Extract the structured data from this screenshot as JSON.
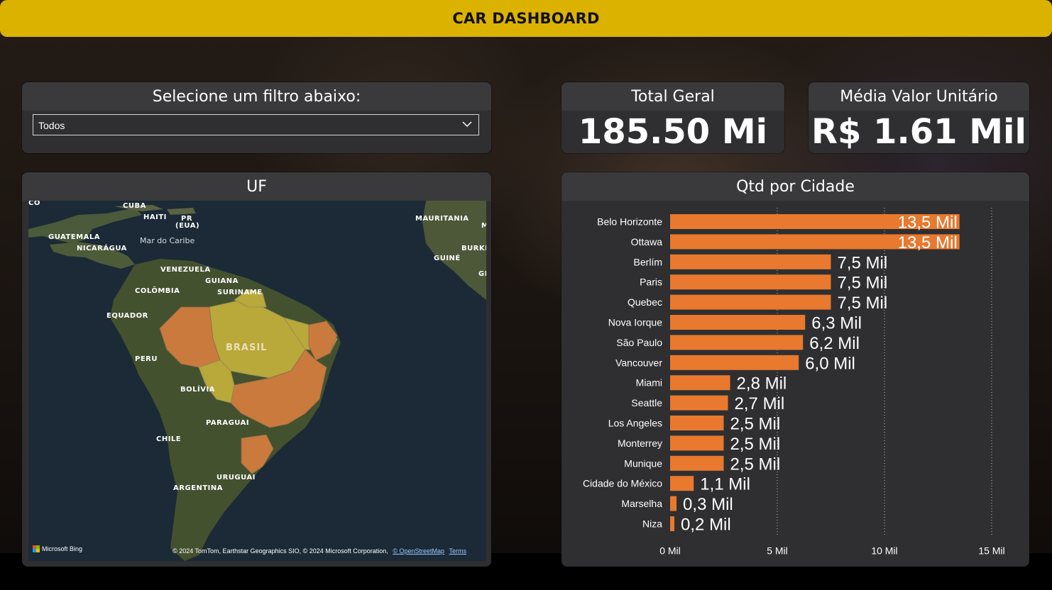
{
  "header": {
    "title": "CAR DASHBOARD"
  },
  "filter": {
    "title": "Selecione um filtro abaixo:",
    "selected": "Todos"
  },
  "kpis": {
    "total": {
      "title": "Total Geral",
      "value": "185.50 Mi"
    },
    "media": {
      "title": "Média Valor Unitário",
      "value": "R$ 1.61 Mil"
    }
  },
  "map": {
    "title": "UF",
    "labels": {
      "cuba": "CUBA",
      "haiti": "HAITI",
      "pr": "PR",
      "pr_eua": "(EUA)",
      "guatemala": "GUATEMALA",
      "nicaragua": "NICARÁGUA",
      "mar_caribe": "Mar do Caribe",
      "venezuela": "VENEZUELA",
      "guiana": "GUIANA",
      "suriname": "SURINAME",
      "colombia": "COLÔMBIA",
      "equador": "EQUADOR",
      "peru": "PERU",
      "brasil": "BRASIL",
      "bolivia": "BOLÍVIA",
      "paraguai": "PARAGUAI",
      "chile": "CHILE",
      "uruguai": "URUGUAI",
      "argentina": "ARGENTINA",
      "mauritania": "MAURITANIA",
      "guine": "GUINÉ",
      "burki": "BURKI",
      "co": "CO",
      "gi": "GI",
      "m": "M"
    },
    "bing_text": "Microsoft Bing",
    "credits": "© 2024 TomTom, Earthstar Geographics SIO, © 2024 Microsoft Corporation,",
    "credits_osm": "© OpenStreetMap",
    "credits_terms": "Terms",
    "colors": {
      "high": "#c97a3c",
      "mid": "#b9a83a",
      "land": "#3f4a30",
      "sea": "#1a2833"
    }
  },
  "chart_data": {
    "type": "bar",
    "orientation": "horizontal",
    "title": "Qtd por Cidade",
    "categories": [
      "Belo Horizonte",
      "Ottawa",
      "Berlím",
      "Paris",
      "Quebec",
      "Nova Iorque",
      "São Paulo",
      "Vancouver",
      "Miami",
      "Seattle",
      "Los Angeles",
      "Monterrey",
      "Munique",
      "Cidade do México",
      "Marselha",
      "Niza"
    ],
    "values": [
      13.5,
      13.5,
      7.5,
      7.5,
      7.5,
      6.3,
      6.2,
      6.0,
      2.8,
      2.7,
      2.5,
      2.5,
      2.5,
      1.1,
      0.3,
      0.2
    ],
    "value_labels": [
      "13,5 Mil",
      "13,5 Mil",
      "7,5 Mil",
      "7,5 Mil",
      "7,5 Mil",
      "6,3 Mil",
      "6,2 Mil",
      "6,0 Mil",
      "2,8 Mil",
      "2,7 Mil",
      "2,5 Mil",
      "2,5 Mil",
      "2,5 Mil",
      "1,1 Mil",
      "0,3 Mil",
      "0,2 Mil"
    ],
    "xlim": [
      0,
      15
    ],
    "xticks": [
      0,
      5,
      10,
      15
    ],
    "xtick_labels": [
      "0 Mil",
      "5 Mil",
      "10 Mil",
      "15 Mil"
    ],
    "unit": "Mil",
    "bar_color": "#e8792e",
    "grid": "vertical dotted"
  }
}
